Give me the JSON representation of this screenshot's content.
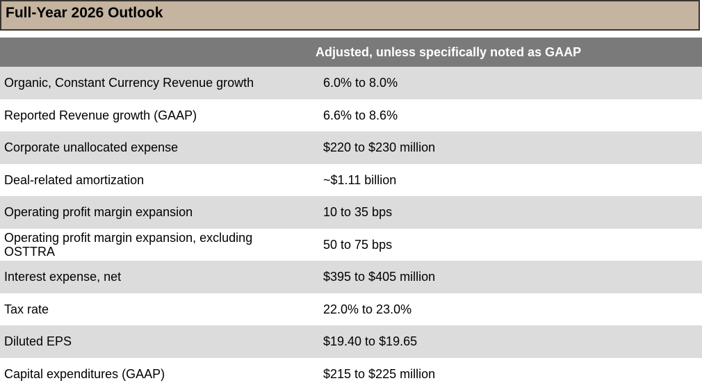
{
  "title": "Full-Year 2026 Outlook",
  "header": "Adjusted, unless specifically noted as GAAP",
  "rows": [
    {
      "label": "Organic, Constant Currency Revenue growth",
      "value": "6.0% to 8.0%"
    },
    {
      "label": "Reported Revenue growth (GAAP)",
      "value": "6.6% to 8.6%"
    },
    {
      "label": "Corporate unallocated expense",
      "value": "$220 to $230 million"
    },
    {
      "label": "Deal-related amortization",
      "value": "~$1.11 billion"
    },
    {
      "label": "Operating profit margin expansion",
      "value": "10 to 35 bps"
    },
    {
      "label": "Operating profit margin expansion, excluding OSTTRA",
      "value": "50 to 75 bps"
    },
    {
      "label": "Interest expense, net",
      "value": "$395 to $405 million"
    },
    {
      "label": "Tax rate",
      "value": "22.0% to 23.0%"
    },
    {
      "label": "Diluted EPS",
      "value": "$19.40 to $19.65"
    },
    {
      "label": "Capital expenditures (GAAP)",
      "value": "$215 to $225 million"
    }
  ],
  "colors": {
    "title_background": "#c4b4a0",
    "header_background": "#7a7a7a",
    "row_shade": "#dcdcdc"
  }
}
